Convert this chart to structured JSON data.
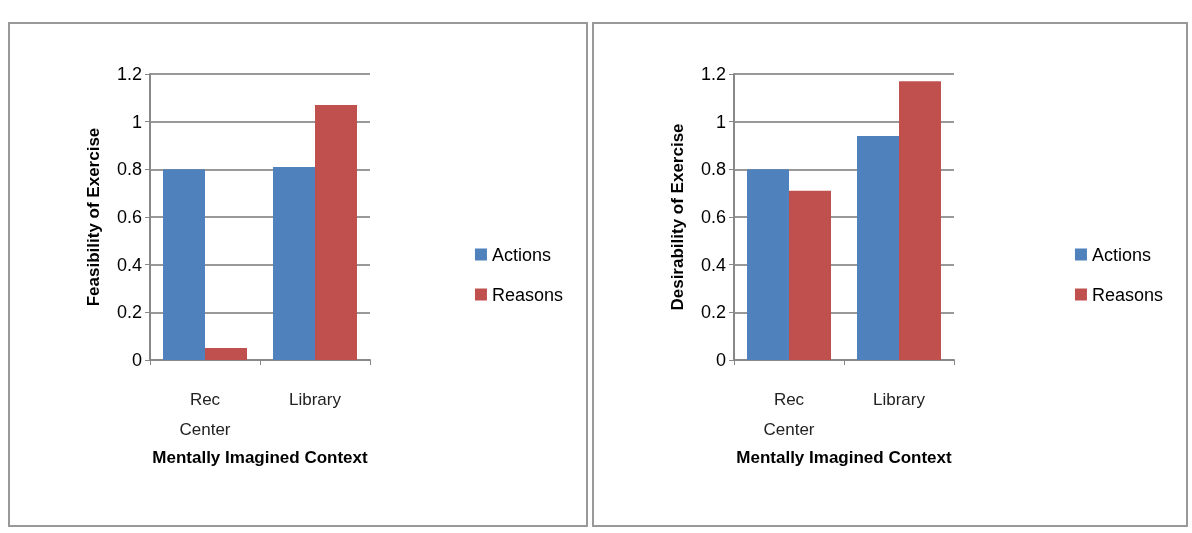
{
  "chart_data": [
    {
      "type": "bar",
      "xlabel": "Mentally Imagined Context",
      "ylabel": "Feasibility of Exercise",
      "categories": [
        "Rec Center",
        "Library"
      ],
      "series": [
        {
          "name": "Actions",
          "color": "#4f81bd",
          "values": [
            0.8,
            0.81
          ]
        },
        {
          "name": "Reasons",
          "color": "#c0504d",
          "values": [
            0.05,
            1.07
          ]
        }
      ],
      "ylim": [
        0,
        1.2
      ],
      "yticks": [
        0,
        0.2,
        0.4,
        0.6,
        0.8,
        1,
        1.2
      ],
      "grid": "y",
      "legend": "right"
    },
    {
      "type": "bar",
      "xlabel": "Mentally Imagined Context",
      "ylabel": "Desirability of Exercise",
      "categories": [
        "Rec Center",
        "Library"
      ],
      "series": [
        {
          "name": "Actions",
          "color": "#4f81bd",
          "values": [
            0.8,
            0.94
          ]
        },
        {
          "name": "Reasons",
          "color": "#c0504d",
          "values": [
            0.71,
            1.17
          ]
        }
      ],
      "ylim": [
        0,
        1.2
      ],
      "yticks": [
        0,
        0.2,
        0.4,
        0.6,
        0.8,
        1,
        1.2
      ],
      "grid": "y",
      "legend": "right"
    }
  ]
}
